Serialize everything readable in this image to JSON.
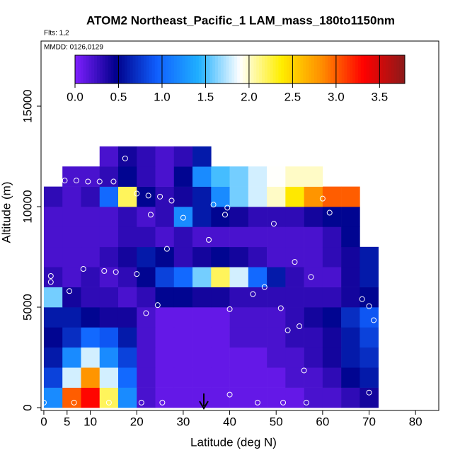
{
  "chart_data": {
    "type": "curtain",
    "title": "ATOM2 Northeast_Pacific_1 LAM_mass_180to1150nm",
    "annotations": [
      "Flts: 1,2",
      "MMDD: 0126,0129"
    ],
    "x_label": "Latitude (deg N)",
    "y_label": "Altitude (m)",
    "xlim": [
      -0.6,
      85
    ],
    "xticks": [
      0,
      5,
      10,
      20,
      30,
      40,
      50,
      60,
      70,
      80
    ],
    "ylim": [
      -140,
      18240
    ],
    "yticks": [
      0,
      5000,
      10000,
      15000
    ],
    "zlim": [
      0,
      3.79
    ],
    "zticks": [
      {
        "value": 0,
        "label": "0.0"
      },
      0.5,
      {
        "value": 1,
        "label": "1.0"
      },
      1.5,
      {
        "value": 2,
        "label": "2.0"
      },
      2.5,
      {
        "value": 3,
        "label": "3.0"
      },
      3.5
    ],
    "colormap": [
      "#7f1fff",
      "#00008b",
      "#1060ff",
      "#20b0ff",
      "#ffffff",
      "#ffee00",
      "#ff8c00",
      "#ff0000",
      "#8b1a1a"
    ],
    "xbins": [
      0,
      4,
      8,
      12,
      16,
      20,
      24,
      28,
      32,
      36,
      40,
      44,
      48,
      52,
      56,
      60,
      64,
      68,
      72
    ],
    "ybins": [
      0,
      1000,
      2000,
      3000,
      4000,
      5000,
      6000,
      7000,
      8000,
      9000,
      10000,
      11000,
      12000,
      13000
    ],
    "z": [
      [
        1.2,
        3.0,
        3.3,
        2.2,
        1.2,
        0.2,
        0.1,
        0.1,
        0.1,
        0.1,
        0.1,
        0.1,
        0.1,
        0.1,
        0.2,
        0.2,
        0.3,
        0.4
      ],
      [
        0.8,
        1.8,
        2.8,
        1.8,
        1.0,
        0.2,
        0.1,
        0.1,
        0.1,
        0.1,
        0.1,
        0.1,
        0.1,
        0.2,
        0.2,
        0.3,
        0.5,
        0.6
      ],
      [
        0.6,
        1.2,
        1.8,
        1.2,
        0.8,
        0.2,
        0.1,
        0.1,
        0.1,
        0.1,
        0.1,
        0.1,
        0.2,
        0.2,
        0.3,
        0.4,
        0.6,
        0.7
      ],
      [
        0.5,
        0.7,
        1.0,
        0.9,
        0.6,
        0.2,
        0.1,
        0.1,
        0.1,
        0.1,
        0.2,
        0.2,
        0.2,
        0.3,
        0.3,
        0.4,
        0.6,
        0.8
      ],
      [
        0.6,
        0.6,
        0.5,
        0.4,
        0.4,
        0.2,
        0.1,
        0.1,
        0.1,
        0.1,
        0.2,
        0.2,
        0.2,
        0.3,
        0.4,
        0.5,
        0.7,
        0.9
      ],
      [
        1.6,
        0.4,
        0.3,
        0.3,
        0.2,
        0.3,
        0.5,
        0.5,
        0.4,
        0.4,
        0.3,
        0.3,
        0.3,
        0.3,
        0.3,
        0.3,
        0.4,
        0.5
      ],
      [
        0.3,
        0.2,
        0.3,
        0.2,
        0.3,
        0.5,
        0.8,
        1.0,
        1.6,
        2.2,
        1.8,
        1.0,
        0.6,
        0.3,
        0.2,
        0.2,
        0.4,
        0.6
      ],
      [
        0.2,
        0.2,
        0.2,
        0.3,
        0.4,
        0.6,
        0.5,
        0.3,
        0.4,
        0.5,
        0.4,
        0.3,
        0.2,
        0.2,
        0.2,
        0.3,
        0.4,
        0.6
      ],
      [
        0.2,
        0.2,
        0.2,
        0.2,
        0.3,
        0.3,
        0.2,
        0.3,
        0.2,
        0.2,
        0.2,
        0.2,
        0.2,
        0.2,
        0.2,
        0.3,
        0.5,
        null
      ],
      [
        0.2,
        0.2,
        0.2,
        0.2,
        0.3,
        0.2,
        0.3,
        1.2,
        0.6,
        0.5,
        0.4,
        0.3,
        0.3,
        0.3,
        0.4,
        0.5,
        0.5,
        null
      ],
      [
        0.3,
        0.2,
        0.3,
        1.0,
        2.2,
        0.5,
        0.3,
        0.4,
        0.6,
        1.2,
        1.6,
        1.8,
        2.0,
        2.4,
        2.8,
        3.0,
        3.0,
        null
      ],
      [
        null,
        0.2,
        0.2,
        0.3,
        0.5,
        0.3,
        0.2,
        0.5,
        1.2,
        1.5,
        1.6,
        1.8,
        1.9,
        2.0,
        2.0,
        null,
        null,
        null
      ],
      [
        null,
        null,
        null,
        0.2,
        0.4,
        0.3,
        0.2,
        0.3,
        0.6,
        null,
        null,
        null,
        null,
        null,
        null,
        null,
        null,
        null
      ]
    ],
    "points": {
      "x": [
        0,
        6.5,
        14,
        21,
        25.5,
        40,
        46,
        51.5,
        56.5,
        70,
        56,
        52.5,
        55,
        71,
        70,
        68.5,
        51,
        40,
        24.5,
        22,
        5.5,
        1.5,
        1.5,
        13,
        15.5,
        20,
        8.5,
        45,
        47.5,
        57.5,
        54,
        26.5,
        35.5,
        49.5,
        30,
        39,
        23,
        61.5,
        27.5,
        36.5,
        39.5,
        60,
        25,
        22.5,
        20,
        4.5,
        3.5,
        7,
        9.5,
        12,
        15,
        11,
        17.5
      ],
      "y": [
        250,
        250,
        250,
        250,
        250,
        650,
        250,
        250,
        250,
        750,
        1850,
        3850,
        4050,
        4350,
        5050,
        5400,
        4950,
        4900,
        5100,
        4700,
        5800,
        6250,
        6550,
        6800,
        6750,
        6650,
        6900,
        5650,
        6000,
        6500,
        7250,
        7900,
        8350,
        9150,
        9450,
        9600,
        9600,
        9700,
        10300,
        10100,
        9950,
        10400,
        10500,
        10550,
        10650,
        11300,
        11300,
        11300,
        11250,
        11250,
        11250,
        12150,
        12400
      ]
    },
    "point_color": "#ffffff"
  }
}
